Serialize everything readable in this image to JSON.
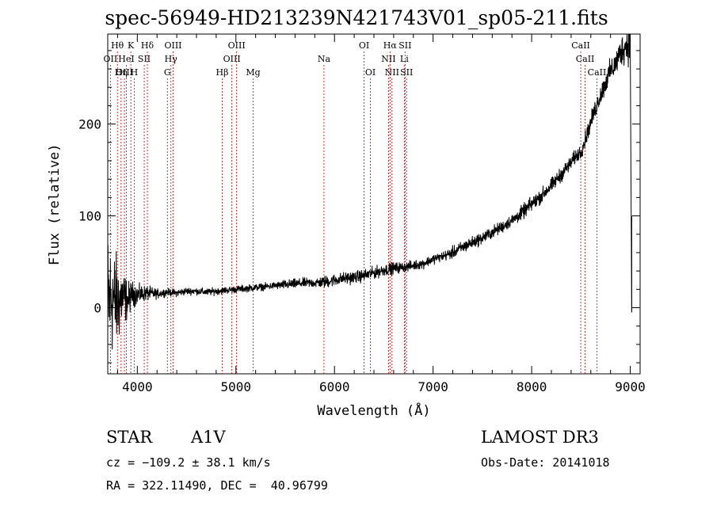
{
  "title": "spec-56949-HD213239N421743V01_sp05-211.fits",
  "info": {
    "class": "STAR",
    "subclass": "A1V",
    "survey": "LAMOST DR3",
    "cz": "cz = −109.2 ± 38.1 km/s",
    "obsdate": "Obs-Date: 20141018",
    "coords": "RA = 322.11490, DEC =  40.96799"
  },
  "colors": {
    "axis": "#000000",
    "spectrum": "#000000",
    "line_markers": "#cc0000",
    "background": "#ffffff"
  },
  "chart_data": {
    "type": "line",
    "title": "spec-56949-HD213239N421743V01_sp05-211.fits",
    "xlabel": "Wavelength (Å)",
    "ylabel": "Flux (relative)",
    "xlim": [
      3700,
      9100
    ],
    "ylim": [
      -72,
      298
    ],
    "xticks": [
      "4000",
      "5000",
      "6000",
      "7000",
      "8000",
      "9000"
    ],
    "yticks": [
      "0",
      "100",
      "200"
    ],
    "grid": false,
    "series": [
      {
        "x": [
          3700,
          3750,
          3800,
          3850,
          3900,
          3950,
          4000,
          4100,
          4200,
          4300,
          4400,
          4500,
          4600,
          4700,
          4800,
          4900,
          5000,
          5100,
          5200,
          5300,
          5400,
          5500,
          5600,
          5700,
          5800,
          5900,
          6000,
          6100,
          6200,
          6300,
          6400,
          6500,
          6600,
          6700,
          6800,
          6900,
          7000,
          7100,
          7200,
          7300,
          7400,
          7500,
          7600,
          7700,
          7800,
          7900,
          8000,
          8100,
          8200,
          8300,
          8400,
          8450,
          8500,
          8550,
          8600,
          8650,
          8700,
          8750,
          8800,
          8850,
          8900,
          8950,
          9000
        ],
        "y": [
          8,
          10,
          5,
          12,
          8,
          15,
          14,
          16,
          15,
          17,
          16,
          18,
          18,
          17,
          18,
          19,
          20,
          21,
          22,
          23,
          24,
          25,
          26,
          27,
          27,
          28,
          30,
          32,
          33,
          35,
          38,
          41,
          43,
          44,
          46,
          48,
          53,
          56,
          60,
          66,
          71,
          76,
          82,
          88,
          95,
          103,
          113,
          122,
          133,
          145,
          158,
          165,
          170,
          185,
          202,
          218,
          232,
          245,
          258,
          265,
          278,
          285,
          290
        ],
        "noise": [
          55,
          45,
          35,
          25,
          15,
          10,
          8,
          6,
          4,
          3,
          3,
          3,
          3,
          3,
          3,
          3,
          3,
          3,
          3,
          3,
          3,
          4,
          4,
          4,
          4,
          5,
          5,
          5,
          5,
          5,
          5,
          5,
          5,
          4,
          4,
          4,
          4,
          4,
          5,
          5,
          5,
          5,
          5,
          5,
          5,
          6,
          6,
          6,
          6,
          6,
          6,
          6,
          6,
          7,
          7,
          8,
          8,
          9,
          10,
          10,
          12,
          14,
          18
        ]
      }
    ],
    "line_markers": [
      {
        "label": "Hθ",
        "x": 3798,
        "row": 0
      },
      {
        "label": "K",
        "x": 3934,
        "row": 0
      },
      {
        "label": "Hδ",
        "x": 4102,
        "row": 0
      },
      {
        "label": "OII",
        "x": 3727,
        "row": 1
      },
      {
        "label": "HeI",
        "x": 3889,
        "row": 1
      },
      {
        "label": "SII",
        "x": 4070,
        "row": 1
      },
      {
        "label": "OIII",
        "x": 3869,
        "row": 2
      },
      {
        "label": "Hη",
        "x": 3835,
        "row": 2
      },
      {
        "label": "H",
        "x": 3969,
        "row": 2
      },
      {
        "label": "OIII",
        "x": 4363,
        "row": 0
      },
      {
        "label": "Hγ",
        "x": 4341,
        "row": 1
      },
      {
        "label": "G",
        "x": 4305,
        "row": 2
      },
      {
        "label": "OIII",
        "x": 5007,
        "row": 0
      },
      {
        "label": "OIII",
        "x": 4959,
        "row": 1
      },
      {
        "label": "Hβ",
        "x": 4861,
        "row": 2
      },
      {
        "label": "Mg",
        "x": 5175,
        "row": 2
      },
      {
        "label": "Na",
        "x": 5893,
        "row": 1
      },
      {
        "label": "OI",
        "x": 6300,
        "row": 0
      },
      {
        "label": "OI",
        "x": 6364,
        "row": 2
      },
      {
        "label": "Hα",
        "x": 6563,
        "row": 0
      },
      {
        "label": "SII",
        "x": 6716,
        "row": 0
      },
      {
        "label": "NII",
        "x": 6548,
        "row": 1
      },
      {
        "label": "Li",
        "x": 6708,
        "row": 1
      },
      {
        "label": "NII",
        "x": 6583,
        "row": 2
      },
      {
        "label": "SII",
        "x": 6731,
        "row": 2
      },
      {
        "label": "CaII",
        "x": 8498,
        "row": 0
      },
      {
        "label": "CaII",
        "x": 8542,
        "row": 1
      },
      {
        "label": "CaII",
        "x": 8662,
        "row": 2
      }
    ]
  }
}
